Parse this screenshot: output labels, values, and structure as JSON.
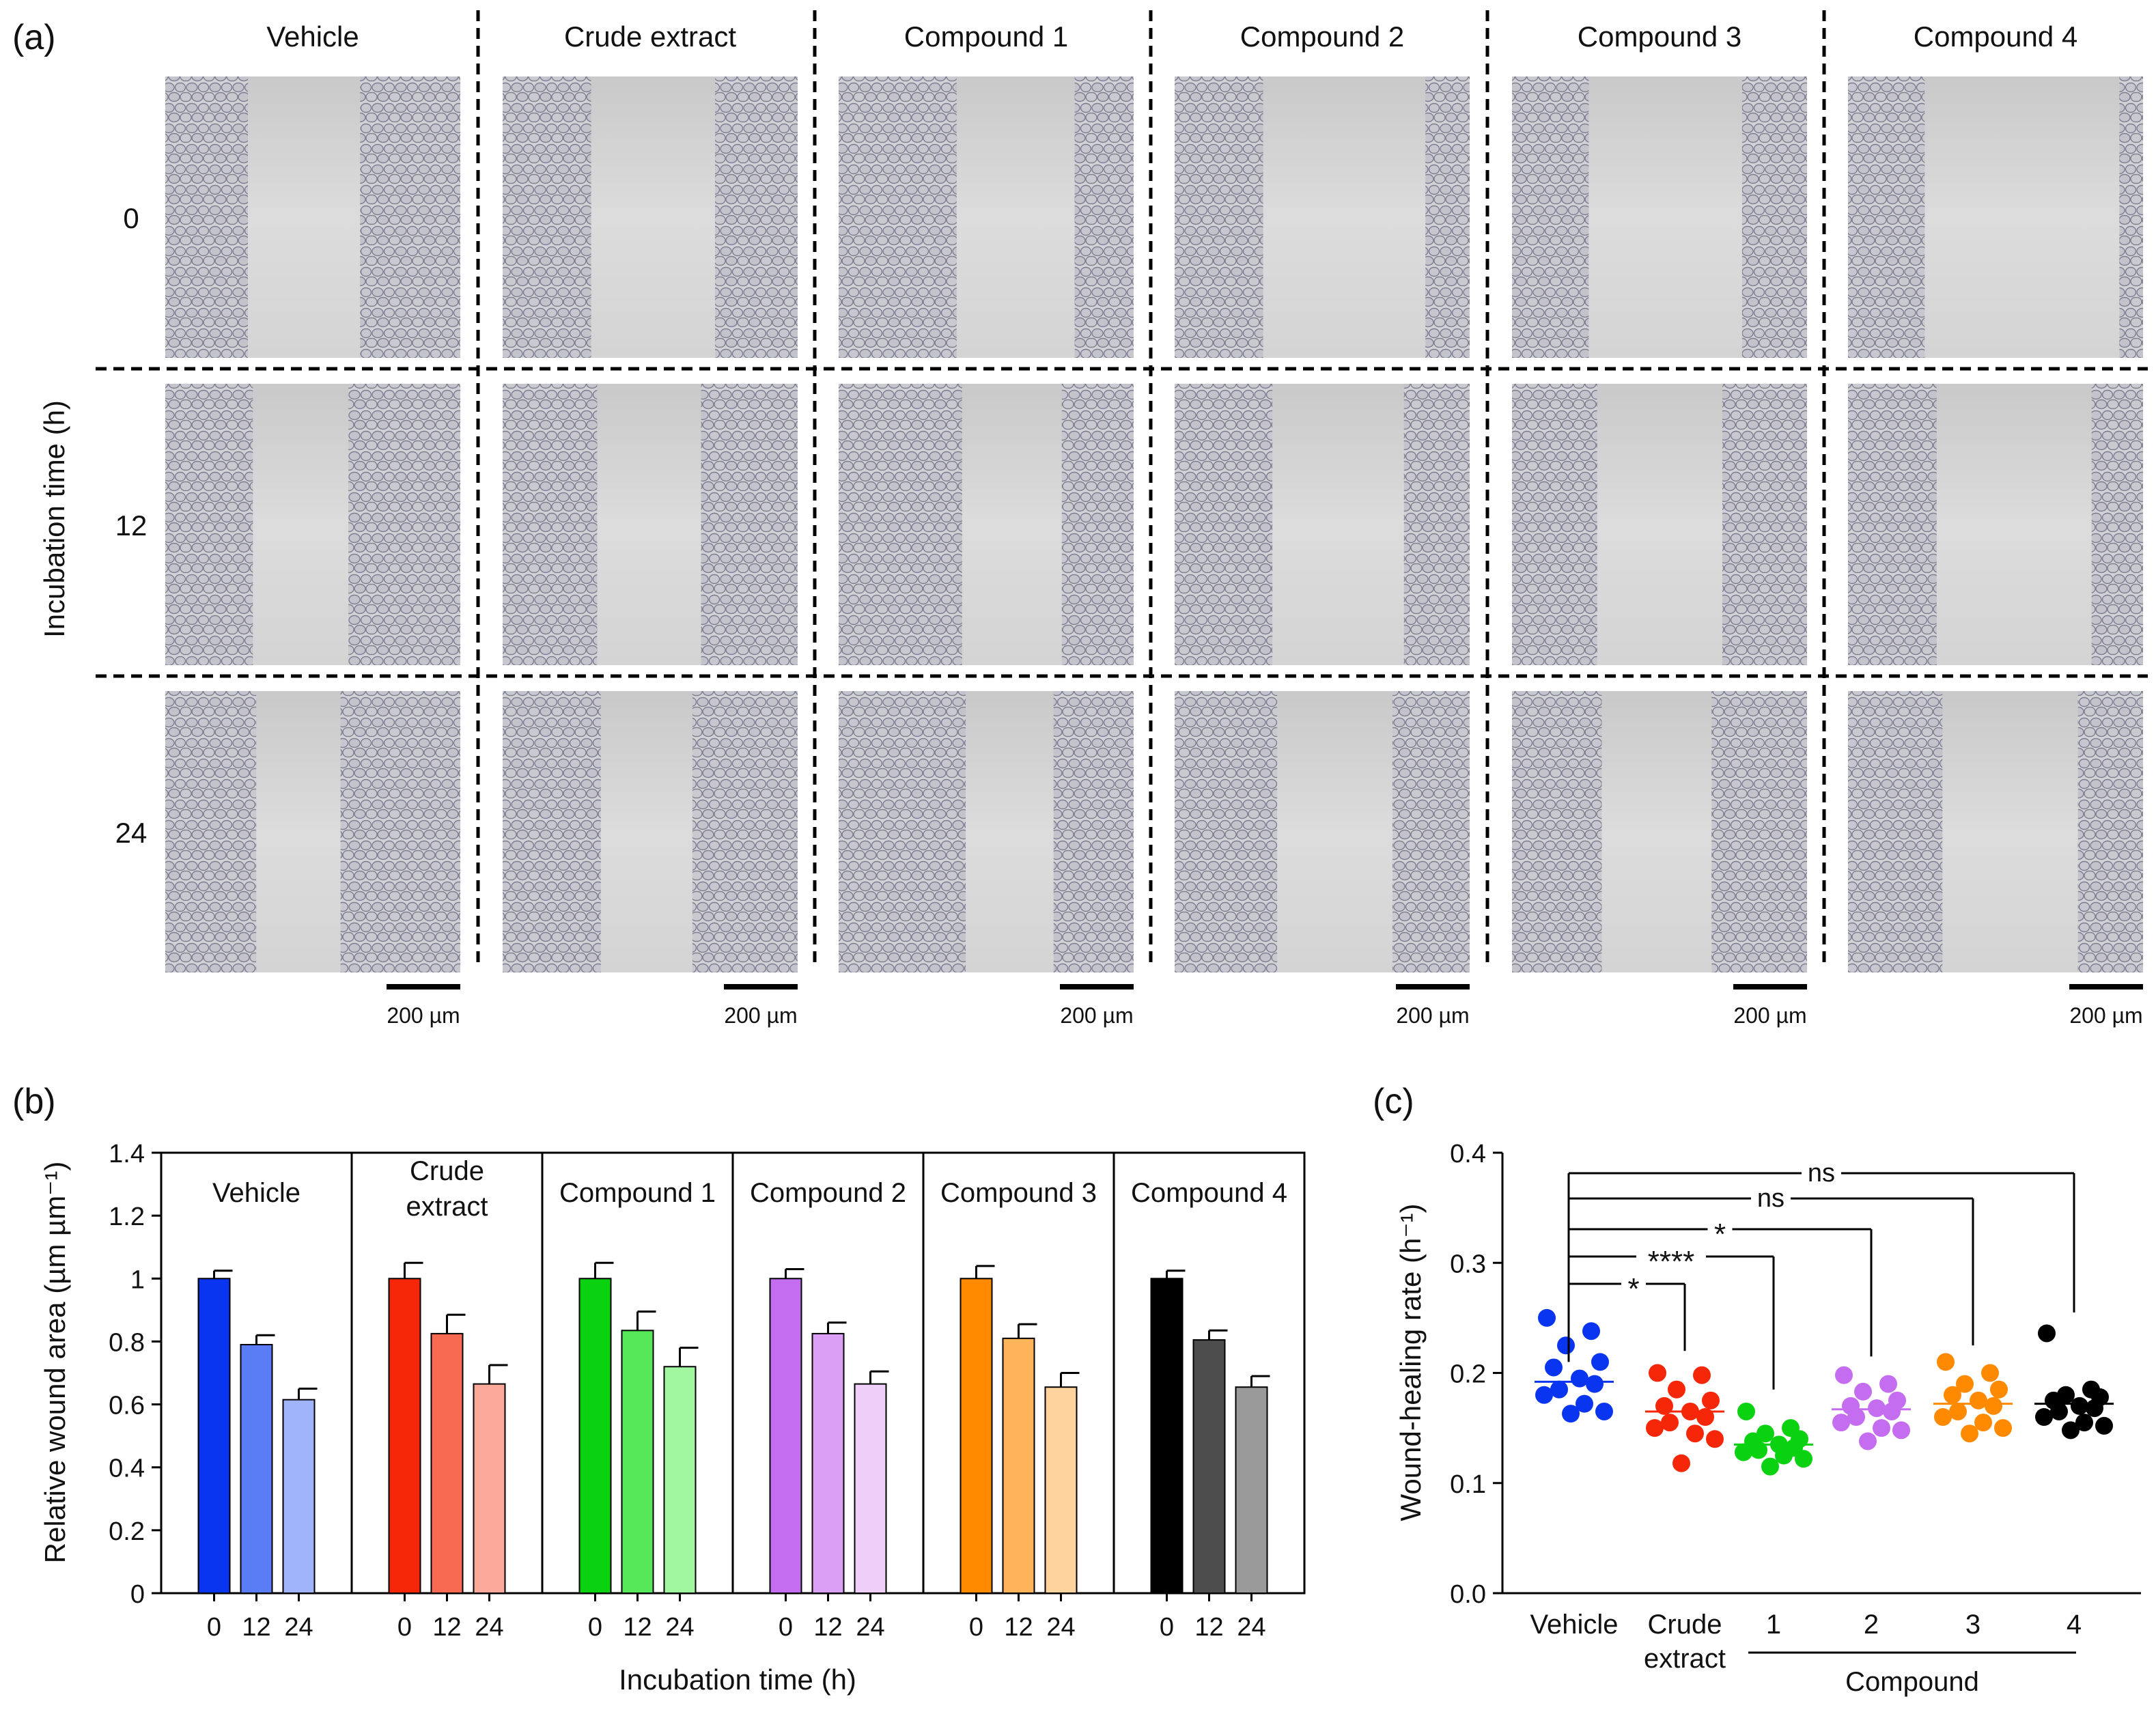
{
  "panel_labels": {
    "a": "(a)",
    "b": "(b)",
    "c": "(c)"
  },
  "panel_a": {
    "columns": [
      "Vehicle",
      "Crude extract",
      "Compound 1",
      "Compound 2",
      "Compound 3",
      "Compound 4"
    ],
    "rows": [
      "0",
      "12",
      "24"
    ],
    "row_axis_label": "Incubation time (h)",
    "scale_bar_label": "200 µm"
  },
  "chart_data": [
    {
      "id": "b",
      "type": "bar",
      "title": "",
      "ylabel": "Relative wound area (µm µm⁻¹)",
      "xlabel": "Incubation time (h)",
      "ylim": [
        0,
        1.4
      ],
      "yticks": [
        "0",
        "0.2",
        "0.4",
        "0.6",
        "0.8",
        "1",
        "1.2",
        "1.4"
      ],
      "categories": [
        "0",
        "12",
        "24"
      ],
      "groups": [
        {
          "name_lines": [
            "Vehicle"
          ],
          "values": [
            1.0,
            0.79,
            0.615
          ],
          "errors": [
            0.025,
            0.03,
            0.035
          ],
          "colors": [
            "#0a35f0",
            "#5a7cf5",
            "#9fb4fa"
          ]
        },
        {
          "name_lines": [
            "Crude",
            "extract"
          ],
          "values": [
            1.0,
            0.825,
            0.665
          ],
          "errors": [
            0.05,
            0.06,
            0.06
          ],
          "colors": [
            "#f62708",
            "#f86a52",
            "#fba99a"
          ]
        },
        {
          "name_lines": [
            "Compound 1"
          ],
          "values": [
            1.0,
            0.835,
            0.72
          ],
          "errors": [
            0.05,
            0.06,
            0.06
          ],
          "colors": [
            "#0bd211",
            "#56e858",
            "#a1f6a0"
          ]
        },
        {
          "name_lines": [
            "Compound 2"
          ],
          "values": [
            1.0,
            0.825,
            0.665
          ],
          "errors": [
            0.03,
            0.035,
            0.04
          ],
          "colors": [
            "#c56df0",
            "#dba0f5",
            "#edcffa"
          ]
        },
        {
          "name_lines": [
            "Compound 3"
          ],
          "values": [
            1.0,
            0.81,
            0.655
          ],
          "errors": [
            0.04,
            0.045,
            0.045
          ],
          "colors": [
            "#ff8a00",
            "#ffb45a",
            "#ffd39e"
          ]
        },
        {
          "name_lines": [
            "Compound 4"
          ],
          "values": [
            1.0,
            0.805,
            0.655
          ],
          "errors": [
            0.025,
            0.03,
            0.035
          ],
          "colors": [
            "#000000",
            "#4d4d4d",
            "#9a9a9a"
          ]
        }
      ]
    },
    {
      "id": "c",
      "type": "scatter",
      "title": "",
      "ylabel": "Wound-healing rate (h⁻¹)",
      "ylim": [
        0,
        0.4
      ],
      "yticks": [
        "0.0",
        "0.1",
        "0.2",
        "0.3",
        "0.4"
      ],
      "category_lines": [
        [
          "Vehicle"
        ],
        [
          "Crude",
          "extract"
        ],
        [
          "1"
        ],
        [
          "2"
        ],
        [
          "3"
        ],
        [
          "4"
        ]
      ],
      "group_label": "Compound",
      "series": [
        {
          "name": "Vehicle",
          "color": "#0a35f0",
          "mean": 0.192,
          "values": [
            0.25,
            0.238,
            0.225,
            0.21,
            0.205,
            0.195,
            0.19,
            0.185,
            0.18,
            0.172,
            0.165,
            0.163
          ]
        },
        {
          "name": "Crude extract",
          "color": "#f62708",
          "mean": 0.165,
          "values": [
            0.2,
            0.198,
            0.185,
            0.175,
            0.17,
            0.165,
            0.16,
            0.155,
            0.15,
            0.145,
            0.14,
            0.118
          ]
        },
        {
          "name": "Compound 1",
          "color": "#0bd211",
          "mean": 0.135,
          "values": [
            0.165,
            0.15,
            0.145,
            0.14,
            0.138,
            0.135,
            0.132,
            0.13,
            0.128,
            0.125,
            0.122,
            0.115
          ]
        },
        {
          "name": "Compound 2",
          "color": "#c56df0",
          "mean": 0.167,
          "values": [
            0.198,
            0.19,
            0.183,
            0.175,
            0.17,
            0.168,
            0.165,
            0.16,
            0.155,
            0.15,
            0.148,
            0.138
          ]
        },
        {
          "name": "Compound 3",
          "color": "#ff8a00",
          "mean": 0.172,
          "values": [
            0.21,
            0.2,
            0.19,
            0.185,
            0.18,
            0.175,
            0.17,
            0.165,
            0.16,
            0.155,
            0.15,
            0.145
          ]
        },
        {
          "name": "Compound 4",
          "color": "#000000",
          "mean": 0.172,
          "values": [
            0.236,
            0.185,
            0.18,
            0.178,
            0.175,
            0.17,
            0.168,
            0.165,
            0.16,
            0.155,
            0.152,
            0.148
          ]
        }
      ],
      "significance": [
        {
          "from": 0,
          "to": 1,
          "label": "*"
        },
        {
          "from": 0,
          "to": 2,
          "label": "****"
        },
        {
          "from": 0,
          "to": 3,
          "label": "*"
        },
        {
          "from": 0,
          "to": 4,
          "label": "ns"
        },
        {
          "from": 0,
          "to": 5,
          "label": "ns"
        }
      ]
    }
  ]
}
